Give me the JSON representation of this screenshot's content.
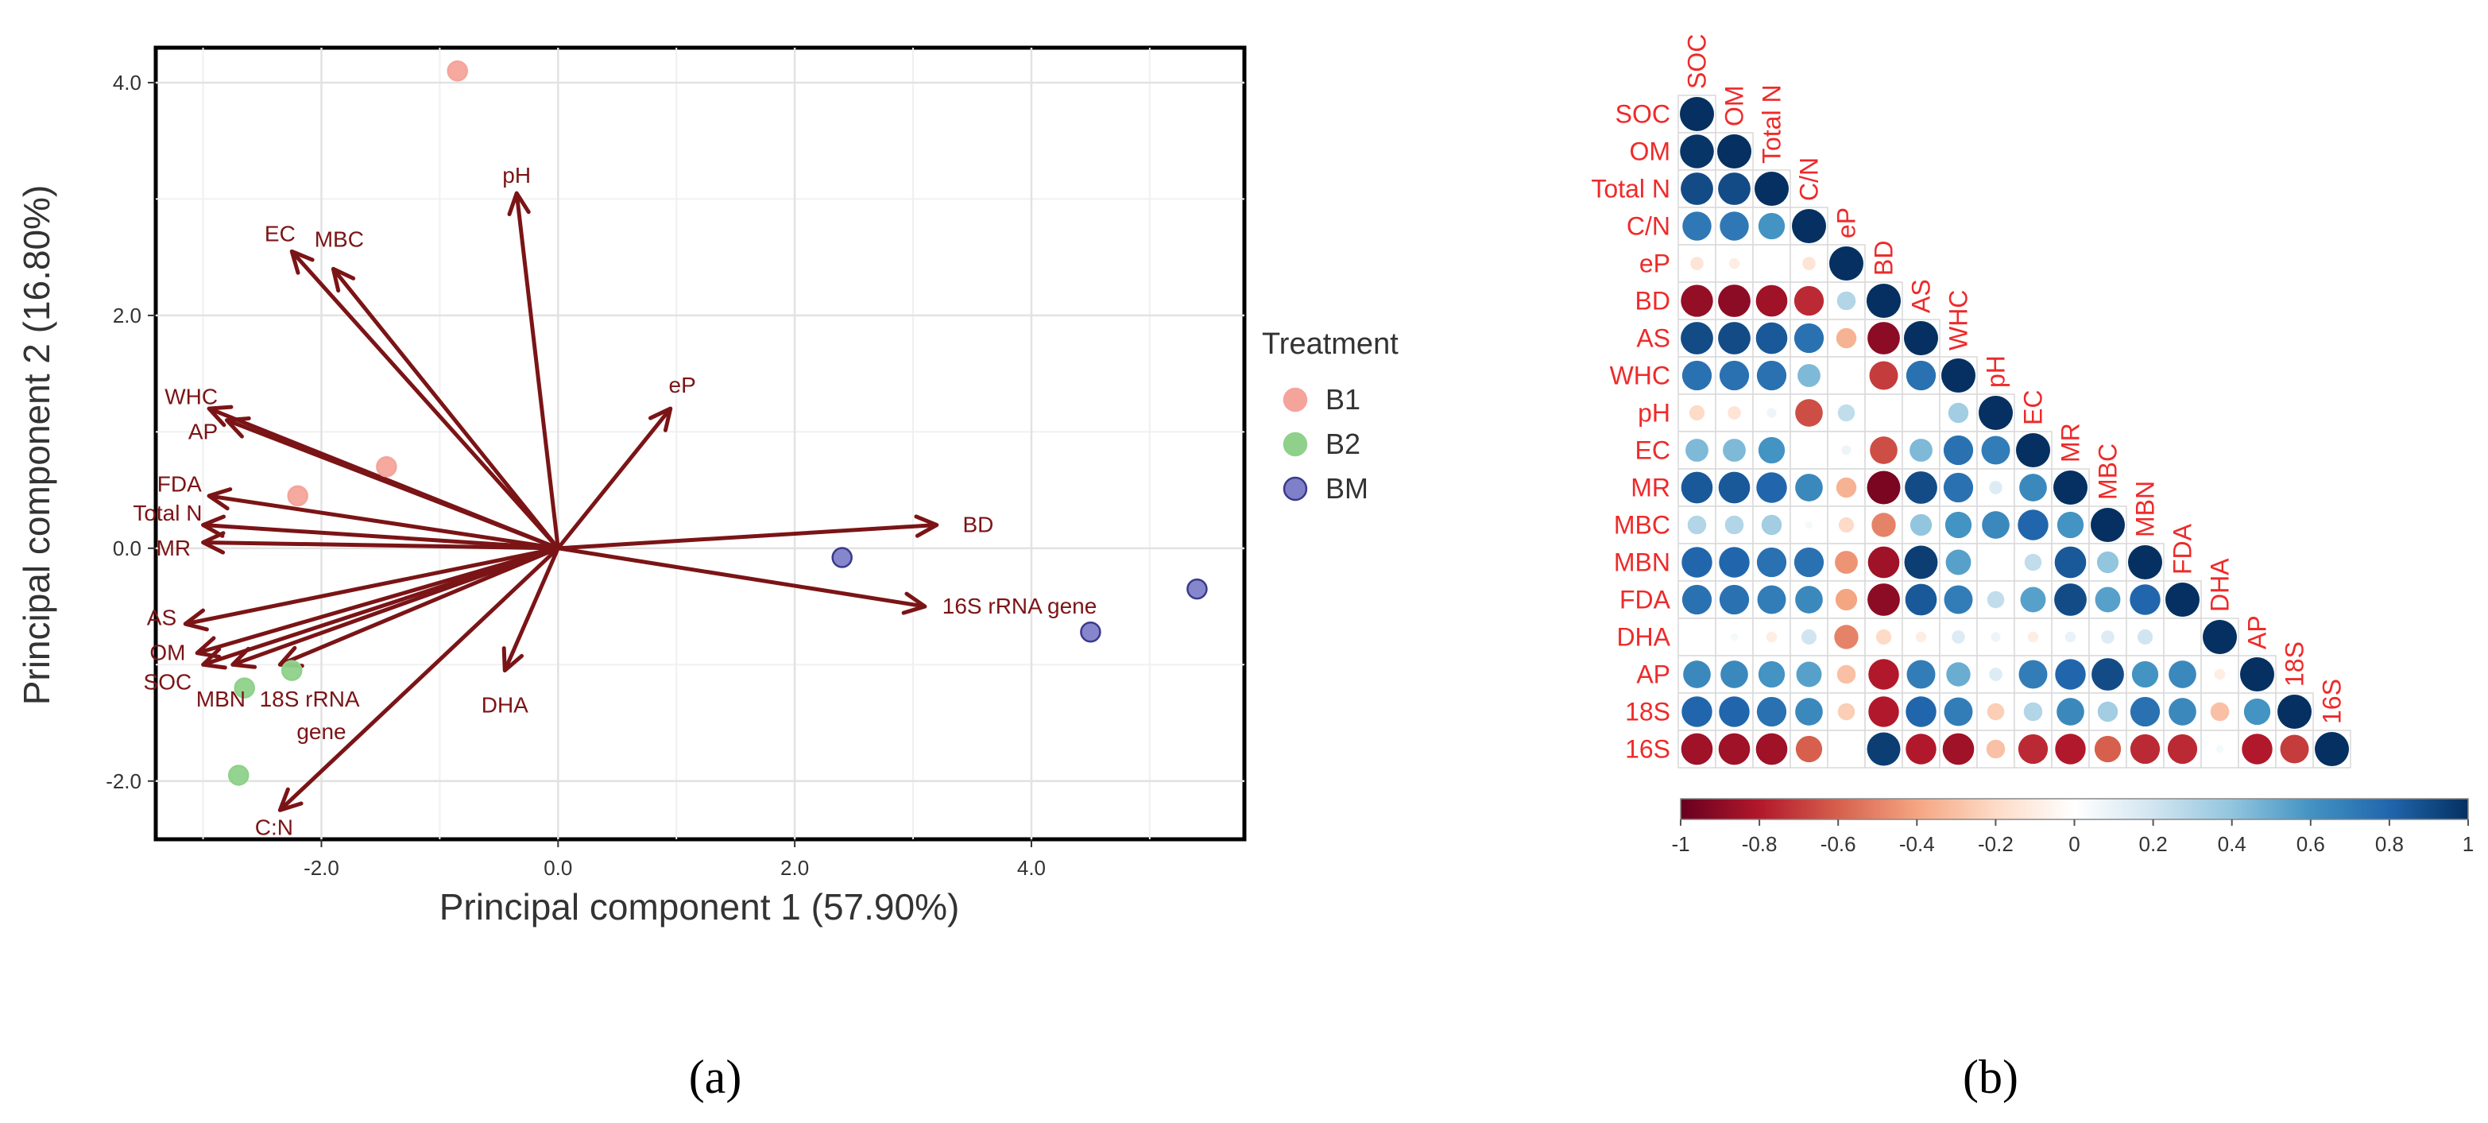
{
  "chart_data": [
    {
      "type": "scatter",
      "subtype": "pca-biplot",
      "panel_label": "(a)",
      "xlabel": "Principal component 1 (57.90%)",
      "ylabel": "Principal component 2 (16.80%)",
      "xlim": [
        -3.4,
        5.8
      ],
      "ylim": [
        -2.5,
        4.3
      ],
      "x_ticks": [
        -2.0,
        0.0,
        2.0,
        4.0
      ],
      "x_tick_labels": [
        "-2.0",
        "0.0",
        "2.0",
        "4.0"
      ],
      "y_ticks": [
        -2.0,
        0.0,
        2.0,
        4.0
      ],
      "y_tick_labels": [
        "-2.0",
        "0.0",
        "2.0",
        "4.0"
      ],
      "grid": true,
      "legend": {
        "title": "Treatment",
        "placement": "right",
        "entries": [
          {
            "name": "B1",
            "color": "#f4a49a"
          },
          {
            "name": "B2",
            "color": "#8fd18a"
          },
          {
            "name": "BM",
            "color": "#7f80c9"
          }
        ]
      },
      "series": [
        {
          "name": "B1",
          "color": "#f4a49a",
          "points": [
            [
              -0.85,
              4.1
            ],
            [
              -1.45,
              0.7
            ],
            [
              -2.2,
              0.45
            ]
          ]
        },
        {
          "name": "B2",
          "color": "#8fd18a",
          "points": [
            [
              -2.25,
              -1.05
            ],
            [
              -2.65,
              -1.2
            ],
            [
              -2.7,
              -1.95
            ]
          ]
        },
        {
          "name": "BM",
          "color": "#7f80c9",
          "points": [
            [
              2.4,
              -0.08
            ],
            [
              4.5,
              -0.72
            ],
            [
              5.4,
              -0.35
            ]
          ]
        }
      ],
      "arrow_color": "#7b1416",
      "loadings": [
        {
          "label": "pH",
          "x": -0.35,
          "y": 3.05,
          "lx": -0.35,
          "ly": 3.2
        },
        {
          "label": "EC",
          "x": -2.25,
          "y": 2.55,
          "lx": -2.35,
          "ly": 2.7
        },
        {
          "label": "MBC",
          "x": -1.9,
          "y": 2.4,
          "lx": -1.85,
          "ly": 2.65
        },
        {
          "label": "eP",
          "x": 0.95,
          "y": 1.2,
          "lx": 1.05,
          "ly": 1.4
        },
        {
          "label": "WHC",
          "x": -2.95,
          "y": 1.2,
          "lx": -3.1,
          "ly": 1.3
        },
        {
          "label": "AP",
          "x": -2.8,
          "y": 1.1,
          "lx": -3.0,
          "ly": 1.0
        },
        {
          "label": "FDA",
          "x": -2.95,
          "y": 0.45,
          "lx": -3.2,
          "ly": 0.55
        },
        {
          "label": "Total N",
          "x": -3.0,
          "y": 0.2,
          "lx": -3.3,
          "ly": 0.3
        },
        {
          "label": "MR",
          "x": -3.0,
          "y": 0.05,
          "lx": -3.25,
          "ly": 0.0
        },
        {
          "label": "BD",
          "x": 3.2,
          "y": 0.2,
          "lx": 3.55,
          "ly": 0.2
        },
        {
          "label": "16S rRNA gene",
          "x": 3.1,
          "y": -0.5,
          "lx": 3.9,
          "ly": -0.5
        },
        {
          "label": "AS",
          "x": -3.15,
          "y": -0.65,
          "lx": -3.35,
          "ly": -0.6
        },
        {
          "label": "OM",
          "x": -3.05,
          "y": -0.9,
          "lx": -3.3,
          "ly": -0.9
        },
        {
          "label": "SOC",
          "x": -3.0,
          "y": -1.0,
          "lx": -3.3,
          "ly": -1.15
        },
        {
          "label": "MBN",
          "x": -2.75,
          "y": -1.0,
          "lx": -2.85,
          "ly": -1.3
        },
        {
          "label": "18S rRNA",
          "x": -2.35,
          "y": -1.0,
          "lx": -2.1,
          "ly": -1.3
        },
        {
          "label": "gene",
          "x": null,
          "y": null,
          "lx": -2.0,
          "ly": -1.58
        },
        {
          "label": "DHA",
          "x": -0.45,
          "y": -1.05,
          "lx": -0.45,
          "ly": -1.35
        },
        {
          "label": "C:N",
          "x": -2.35,
          "y": -2.25,
          "lx": -2.4,
          "ly": -2.4
        }
      ]
    },
    {
      "type": "heatmap",
      "subtype": "correlation-matrix-circles",
      "panel_label": "(b)",
      "variables": [
        "SOC",
        "OM",
        "Total N",
        "C/N",
        "eP",
        "BD",
        "AS",
        "WHC",
        "pH",
        "EC",
        "MR",
        "MBC",
        "MBN",
        "FDA",
        "DHA",
        "AP",
        "18S",
        "16S"
      ],
      "label_color": "#ee2a2a",
      "colorbar": {
        "range": [
          -1,
          1
        ],
        "ticks": [
          -1,
          -0.8,
          -0.6,
          -0.4,
          -0.2,
          0,
          0.2,
          0.4,
          0.6,
          0.8,
          1
        ],
        "tick_labels": [
          "-1",
          "-0.8",
          "-0.6",
          "-0.4",
          "-0.2",
          "0",
          "0.2",
          "0.4",
          "0.6",
          "0.8",
          "1"
        ],
        "colors": [
          "#67001f",
          "#b2182b",
          "#d6604d",
          "#f4a582",
          "#fddbc7",
          "#ffffff",
          "#d1e5f0",
          "#92c5de",
          "#4393c3",
          "#2166ac",
          "#053061"
        ]
      },
      "lower_triangle": [
        [
          1.0
        ],
        [
          0.98,
          1.0
        ],
        [
          0.9,
          0.9,
          1.0
        ],
        [
          0.72,
          0.72,
          0.6,
          1.0
        ],
        [
          -0.15,
          -0.1,
          0.0,
          -0.15,
          1.0
        ],
        [
          -0.88,
          -0.9,
          -0.85,
          -0.75,
          0.3,
          1.0
        ],
        [
          0.9,
          0.9,
          0.85,
          0.75,
          -0.35,
          -0.9,
          1.0
        ],
        [
          0.75,
          0.75,
          0.75,
          0.45,
          0.0,
          -0.7,
          0.75,
          1.0
        ],
        [
          -0.2,
          -0.15,
          0.08,
          -0.65,
          0.25,
          0.0,
          0.0,
          0.35,
          1.0
        ],
        [
          0.45,
          0.45,
          0.6,
          0.0,
          0.08,
          -0.65,
          0.45,
          0.75,
          0.7,
          1.0
        ],
        [
          0.85,
          0.85,
          0.8,
          0.65,
          -0.35,
          -0.95,
          0.9,
          0.75,
          0.15,
          0.65,
          1.0
        ],
        [
          0.3,
          0.3,
          0.35,
          0.05,
          -0.2,
          -0.5,
          0.4,
          0.6,
          0.65,
          0.8,
          0.6,
          1.0
        ],
        [
          0.8,
          0.8,
          0.75,
          0.75,
          -0.45,
          -0.85,
          0.95,
          0.55,
          0.0,
          0.25,
          0.85,
          0.4,
          1.0
        ],
        [
          0.75,
          0.75,
          0.7,
          0.65,
          -0.4,
          -0.9,
          0.85,
          0.7,
          0.25,
          0.55,
          0.9,
          0.55,
          0.8,
          1.0
        ],
        [
          0.0,
          0.05,
          -0.1,
          0.2,
          -0.5,
          -0.2,
          -0.1,
          0.15,
          0.08,
          -0.1,
          0.1,
          0.15,
          0.2,
          0.0,
          1.0
        ],
        [
          0.65,
          0.65,
          0.6,
          0.55,
          -0.3,
          -0.8,
          0.7,
          0.5,
          0.15,
          0.7,
          0.8,
          0.9,
          0.6,
          0.65,
          -0.1,
          1.0
        ],
        [
          0.8,
          0.8,
          0.75,
          0.65,
          -0.25,
          -0.8,
          0.8,
          0.7,
          -0.25,
          0.3,
          0.65,
          0.35,
          0.75,
          0.65,
          -0.3,
          0.6,
          1.0
        ],
        [
          -0.85,
          -0.85,
          -0.85,
          -0.6,
          0.0,
          0.95,
          -0.8,
          -0.85,
          -0.3,
          -0.75,
          -0.8,
          -0.6,
          -0.75,
          -0.75,
          0.05,
          -0.8,
          -0.7,
          1.0
        ]
      ]
    }
  ]
}
